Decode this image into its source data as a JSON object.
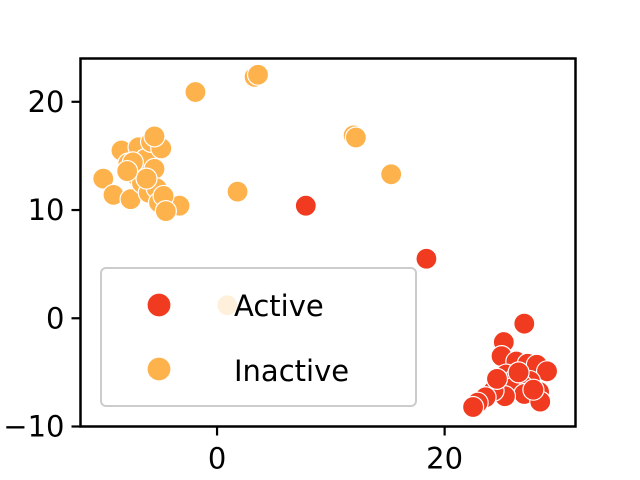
{
  "chart_data": {
    "type": "scatter",
    "title": "",
    "xlabel": "",
    "ylabel": "",
    "xlim": [
      -12,
      31.5
    ],
    "ylim": [
      -10,
      24
    ],
    "xticks": [
      0,
      20
    ],
    "yticks": [
      -10,
      0,
      10,
      20
    ],
    "x_tick_labels": [
      "0",
      "20"
    ],
    "y_tick_labels": [
      "−10",
      "0",
      "10",
      "20"
    ],
    "grid": false,
    "legend_position": "lower-left",
    "series": [
      {
        "name": "Active",
        "color": "#f03b20",
        "points": [
          [
            7.8,
            10.4
          ],
          [
            18.4,
            5.5
          ],
          [
            27.0,
            -0.5
          ],
          [
            25.2,
            -2.2
          ],
          [
            25.0,
            -3.5
          ],
          [
            26.3,
            -4.0
          ],
          [
            27.3,
            -4.2
          ],
          [
            28.1,
            -4.3
          ],
          [
            29.0,
            -4.9
          ],
          [
            25.4,
            -5.2
          ],
          [
            26.2,
            -5.6
          ],
          [
            27.5,
            -5.8
          ],
          [
            26.8,
            -6.2
          ],
          [
            25.8,
            -6.5
          ],
          [
            28.3,
            -6.8
          ],
          [
            27.0,
            -7.0
          ],
          [
            25.3,
            -7.2
          ],
          [
            24.3,
            -6.7
          ],
          [
            23.6,
            -7.3
          ],
          [
            22.9,
            -7.8
          ],
          [
            22.5,
            -8.2
          ],
          [
            28.4,
            -7.7
          ],
          [
            27.8,
            -6.6
          ],
          [
            26.5,
            -5.0
          ],
          [
            24.6,
            -5.6
          ]
        ]
      },
      {
        "name": "Inactive",
        "color": "#feb24c",
        "points": [
          [
            -1.9,
            20.9
          ],
          [
            3.3,
            22.3
          ],
          [
            3.6,
            22.5
          ],
          [
            12.0,
            16.9
          ],
          [
            12.2,
            16.7
          ],
          [
            15.3,
            13.3
          ],
          [
            1.8,
            11.7
          ],
          [
            -3.3,
            10.4
          ],
          [
            0.9,
            1.2
          ],
          [
            -10.0,
            12.9
          ],
          [
            -9.1,
            11.4
          ],
          [
            -8.4,
            15.5
          ],
          [
            -7.8,
            14.3
          ],
          [
            -7.6,
            11.0
          ],
          [
            -7.1,
            13.2
          ],
          [
            -6.9,
            15.8
          ],
          [
            -6.6,
            12.5
          ],
          [
            -6.3,
            14.7
          ],
          [
            -6.0,
            11.6
          ],
          [
            -5.8,
            16.3
          ],
          [
            -5.5,
            13.8
          ],
          [
            -5.3,
            12.0
          ],
          [
            -5.1,
            10.7
          ],
          [
            -4.9,
            15.7
          ],
          [
            -4.7,
            11.3
          ],
          [
            -4.5,
            9.9
          ],
          [
            -5.5,
            16.8
          ],
          [
            -7.4,
            14.4
          ],
          [
            -6.2,
            12.9
          ],
          [
            -7.9,
            13.6
          ]
        ]
      }
    ]
  }
}
